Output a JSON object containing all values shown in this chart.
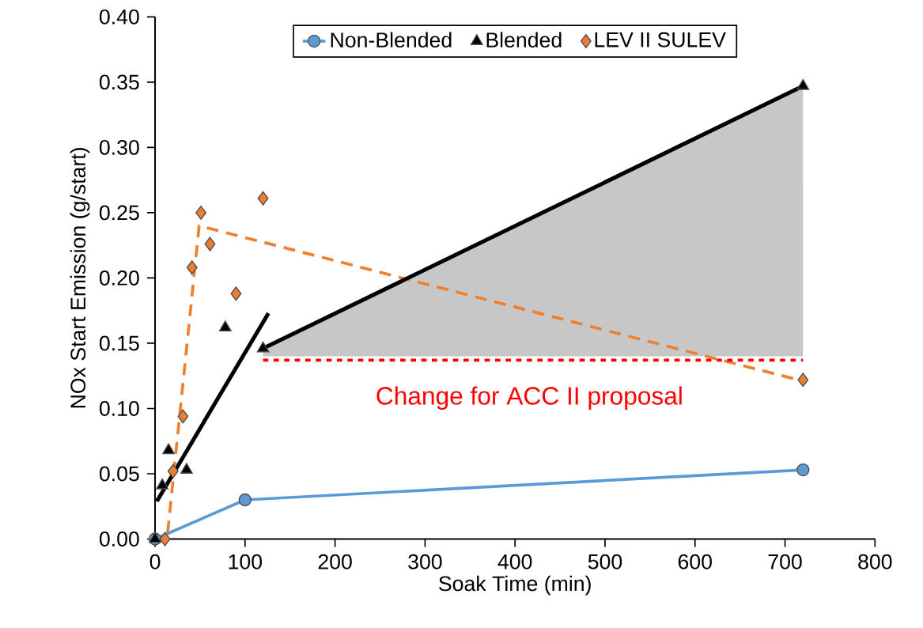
{
  "chart_data": {
    "type": "scatter",
    "xlabel": "Soak Time (min)",
    "ylabel": "NOx Start Emission (g/start)",
    "xlim": [
      0,
      800
    ],
    "ylim": [
      0,
      0.4
    ],
    "xticks": [
      0,
      100,
      200,
      300,
      400,
      500,
      600,
      700,
      800
    ],
    "yticks": [
      {
        "value": 0,
        "label": "0.00"
      },
      {
        "value": 0.05,
        "label": "0.05"
      },
      {
        "value": 0.1,
        "label": "0.10"
      },
      {
        "value": 0.15,
        "label": "0.15"
      },
      {
        "value": 0.2,
        "label": "0.20"
      },
      {
        "value": 0.25,
        "label": "0.25"
      },
      {
        "value": 0.3,
        "label": "0.30"
      },
      {
        "value": 0.35,
        "label": "0.35"
      },
      {
        "value": 0.4,
        "label": "0.40"
      }
    ],
    "legend": "top",
    "annotations": [
      "Change for ACC II proposal"
    ],
    "series": [
      {
        "name": "Non-Blended",
        "type": "line",
        "color": "#5b9bd5",
        "marker": "circle",
        "x": [
          0,
          100,
          720
        ],
        "values": [
          0,
          0.03,
          0.053
        ]
      },
      {
        "name": "Blended",
        "color": "#000000",
        "marker": "triangle",
        "x": [
          0,
          8,
          15,
          35,
          78,
          120,
          720
        ],
        "values": [
          0,
          0.041,
          0.068,
          0.053,
          0.162,
          0.146,
          0.347
        ]
      },
      {
        "name": "LEV II SULEV",
        "color": "#ed7d31",
        "marker": "diamond",
        "x": [
          11,
          20,
          31,
          41,
          51,
          61,
          90,
          120,
          720
        ],
        "values": [
          0,
          0.052,
          0.094,
          0.208,
          0.25,
          0.226,
          0.188,
          0.261,
          0.122
        ]
      },
      {
        "type": "line",
        "color": "#000000",
        "line_style": "solid",
        "x": [
          2,
          126
        ],
        "values": [
          0.029,
          0.173
        ]
      },
      {
        "type": "line",
        "color": "#f07f2c",
        "line_style": "dashed",
        "x": [
          14,
          49,
          720
        ],
        "values": [
          0.005,
          0.24,
          0.121
        ]
      },
      {
        "type": "line",
        "color": "#000000",
        "line_style": "solid",
        "x": [
          120,
          720
        ],
        "values": [
          0.146,
          0.347
        ],
        "lower": [
          0.14,
          0.14
        ],
        "upper": [
          0.146,
          0.347
        ]
      },
      {
        "type": "line",
        "color": "#ff0000",
        "line_style": "dotted",
        "x": [
          120,
          720
        ],
        "values": [
          0.137,
          0.137
        ]
      }
    ]
  }
}
